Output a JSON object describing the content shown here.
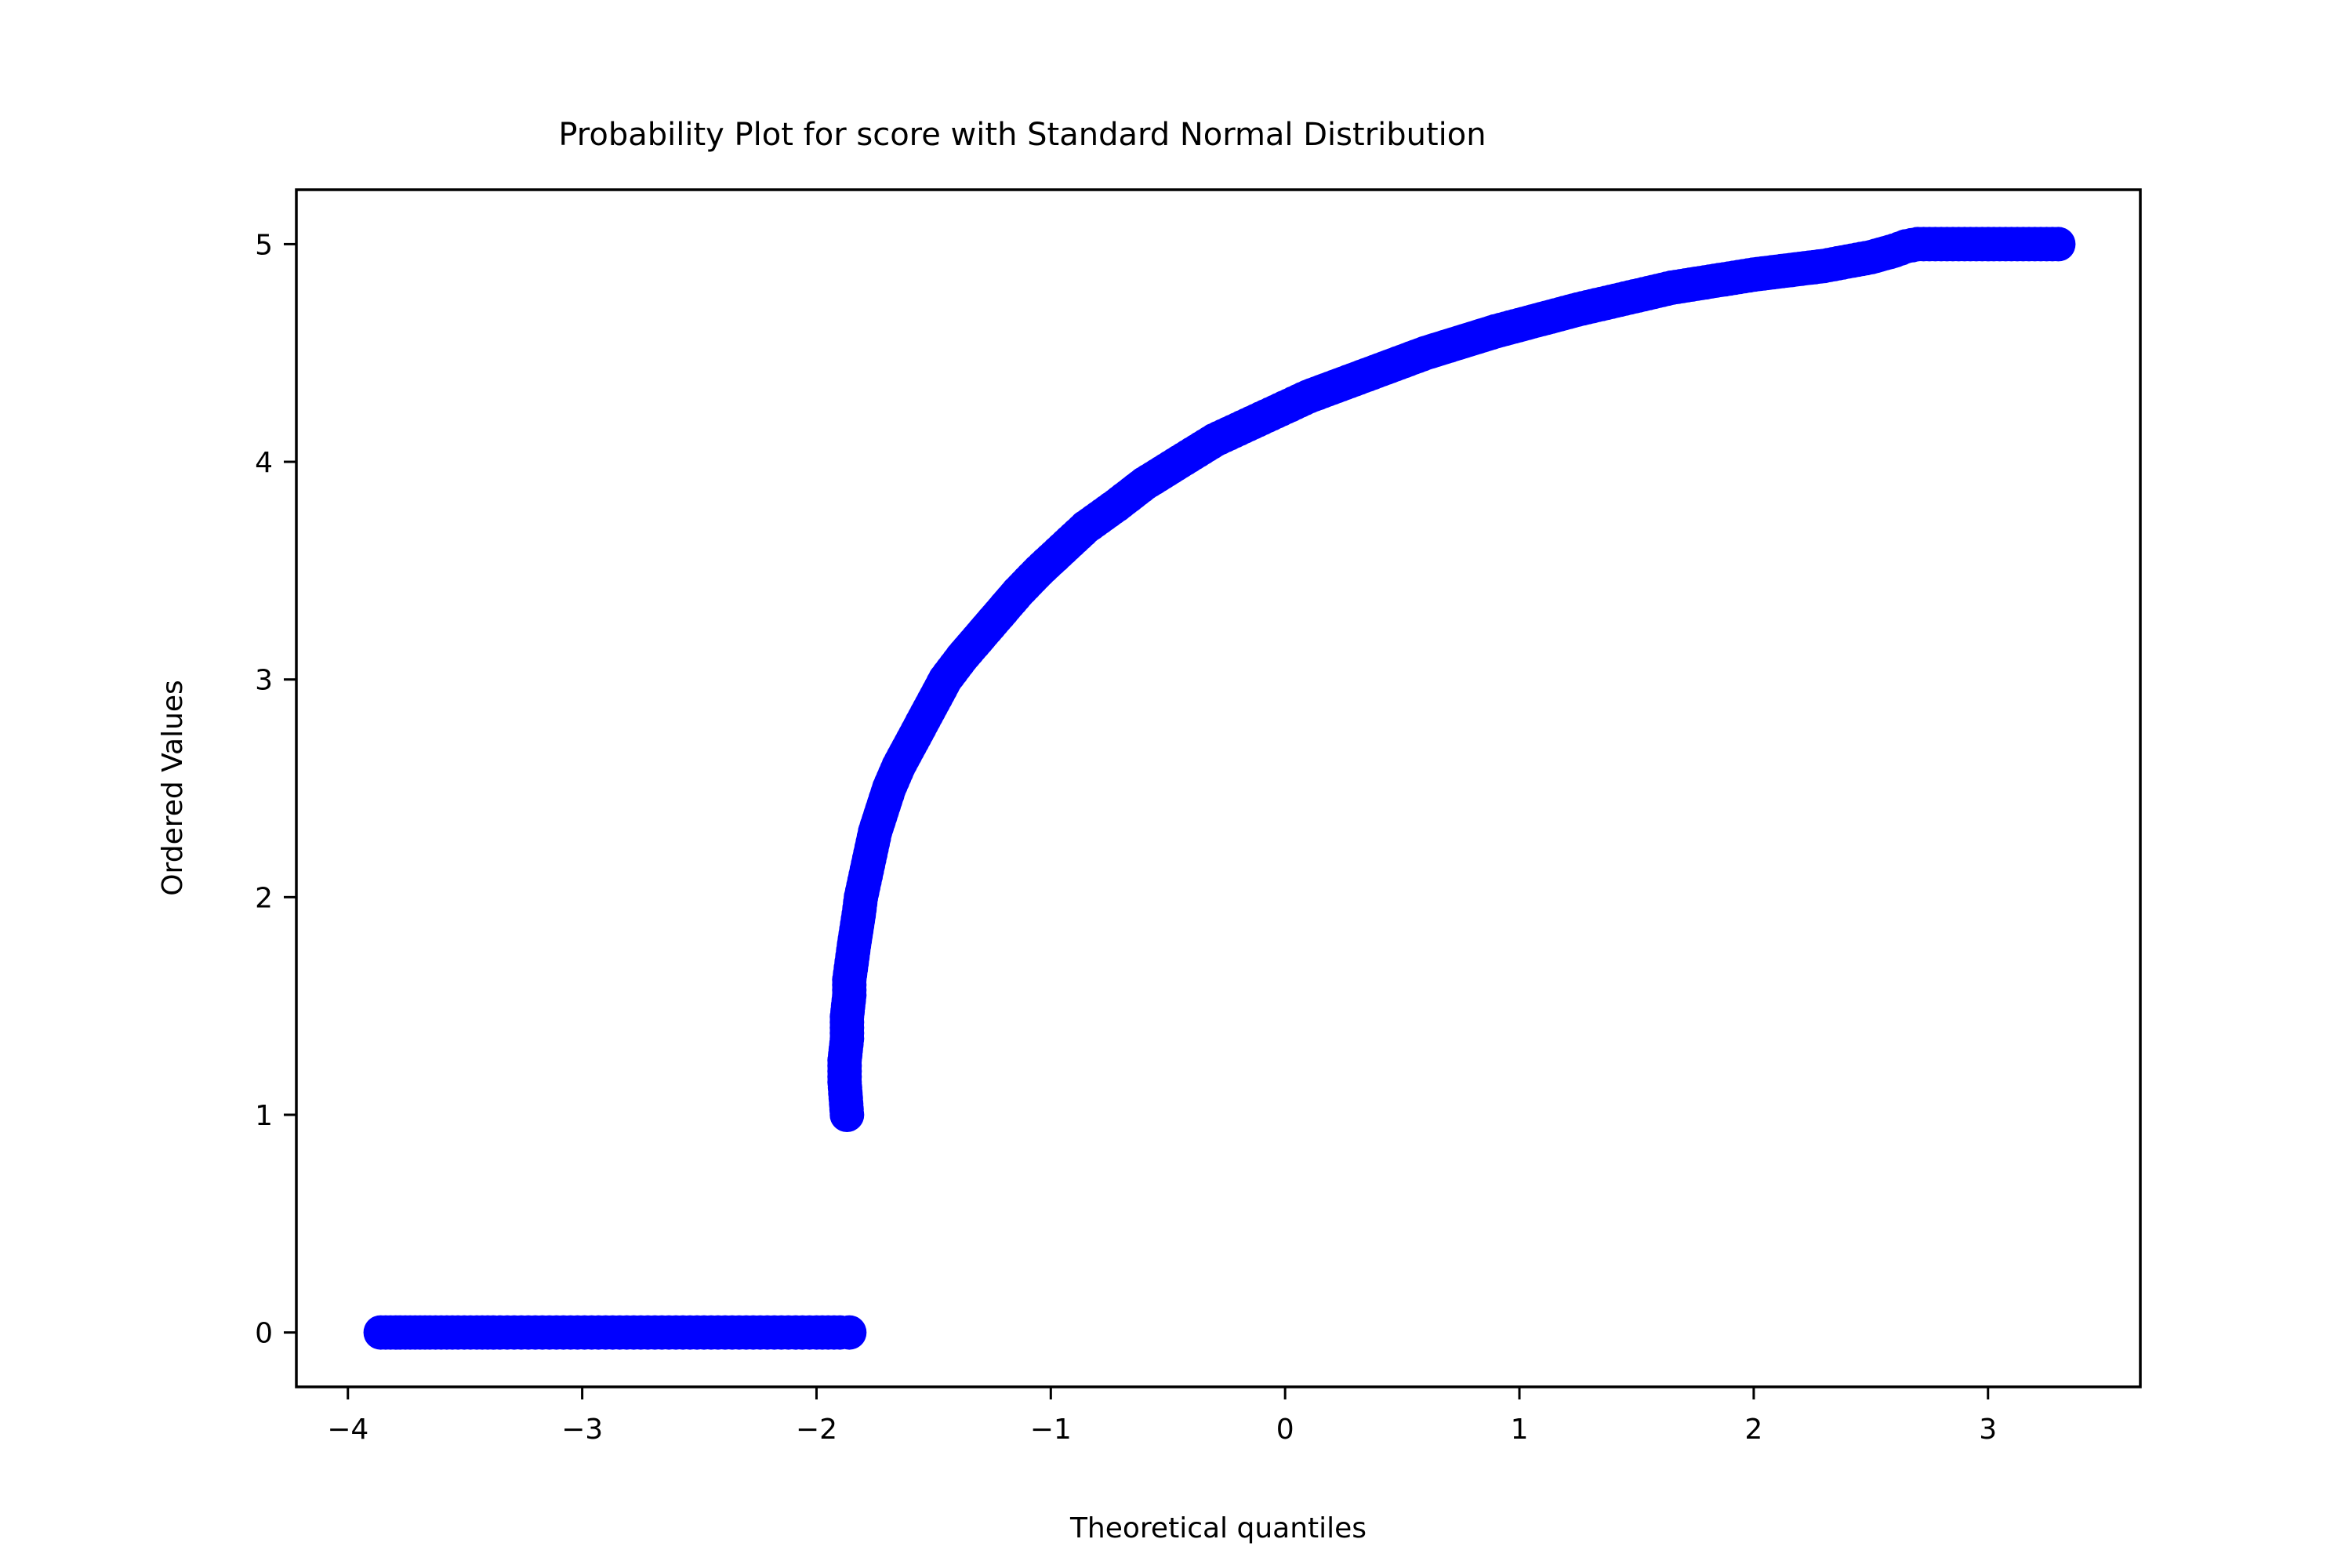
{
  "chart_data": {
    "type": "scatter",
    "title": "Probability Plot for score with Standard Normal Distribution",
    "xlabel": "Theoretical quantiles",
    "ylabel": "Ordered Values",
    "xlim": [
      -4.22,
      3.65
    ],
    "ylim": [
      -0.25,
      5.25
    ],
    "xticks": [
      -4,
      -3,
      -2,
      -1,
      0,
      1,
      2,
      3
    ],
    "xtick_labels": [
      "−4",
      "−3",
      "−2",
      "−1",
      "0",
      "1",
      "2",
      "3"
    ],
    "yticks": [
      0,
      1,
      2,
      3,
      4,
      5
    ],
    "ytick_labels": [
      "0",
      "1",
      "2",
      "3",
      "4",
      "5"
    ],
    "grid": false,
    "marker_color": "#0000ff",
    "series": [
      {
        "points": [
          [
            -3.86,
            0
          ],
          [
            -3.65,
            0
          ],
          [
            -3.53,
            0
          ],
          [
            -3.45,
            0
          ],
          [
            -3.38,
            0
          ],
          [
            -3.32,
            0
          ],
          [
            -3.26,
            0
          ],
          [
            -3.2,
            0
          ],
          [
            -3.14,
            0
          ],
          [
            -3.08,
            0
          ],
          [
            -3.02,
            0
          ],
          [
            -2.96,
            0
          ],
          [
            -2.9,
            0
          ],
          [
            -2.84,
            0
          ],
          [
            -2.78,
            0
          ],
          [
            -2.72,
            0
          ],
          [
            -2.66,
            0
          ],
          [
            -2.6,
            0
          ],
          [
            -2.54,
            0
          ],
          [
            -2.48,
            0
          ],
          [
            -2.42,
            0
          ],
          [
            -2.36,
            0
          ],
          [
            -2.3,
            0
          ],
          [
            -2.24,
            0
          ],
          [
            -2.18,
            0
          ],
          [
            -2.12,
            0
          ],
          [
            -2.06,
            0
          ],
          [
            -2.0,
            0
          ],
          [
            -1.95,
            0
          ],
          [
            -1.9,
            0
          ],
          [
            -1.86,
            0
          ],
          [
            -1.87,
            1.0
          ],
          [
            -1.88,
            1.15
          ],
          [
            -1.88,
            1.25
          ],
          [
            -1.87,
            1.35
          ],
          [
            -1.87,
            1.45
          ],
          [
            -1.86,
            1.55
          ],
          [
            -1.86,
            1.62
          ],
          [
            -1.85,
            1.7
          ],
          [
            -1.84,
            1.78
          ],
          [
            -1.83,
            1.85
          ],
          [
            -1.82,
            1.92
          ],
          [
            -1.81,
            2.0
          ],
          [
            -1.79,
            2.1
          ],
          [
            -1.77,
            2.2
          ],
          [
            -1.75,
            2.3
          ],
          [
            -1.72,
            2.4
          ],
          [
            -1.69,
            2.5
          ],
          [
            -1.65,
            2.6
          ],
          [
            -1.6,
            2.7
          ],
          [
            -1.55,
            2.8
          ],
          [
            -1.5,
            2.9
          ],
          [
            -1.45,
            3.0
          ],
          [
            -1.38,
            3.1
          ],
          [
            -1.3,
            3.2
          ],
          [
            -1.22,
            3.3
          ],
          [
            -1.14,
            3.4
          ],
          [
            -1.05,
            3.5
          ],
          [
            -0.95,
            3.6
          ],
          [
            -0.85,
            3.7
          ],
          [
            -0.72,
            3.8
          ],
          [
            -0.6,
            3.9
          ],
          [
            -0.45,
            4.0
          ],
          [
            -0.3,
            4.1
          ],
          [
            -0.1,
            4.2
          ],
          [
            0.1,
            4.3
          ],
          [
            0.35,
            4.4
          ],
          [
            0.6,
            4.5
          ],
          [
            0.9,
            4.6
          ],
          [
            1.25,
            4.7
          ],
          [
            1.65,
            4.8
          ],
          [
            2.0,
            4.86
          ],
          [
            2.3,
            4.9
          ],
          [
            2.5,
            4.94
          ],
          [
            2.6,
            4.97
          ],
          [
            2.65,
            4.99
          ],
          [
            2.7,
            5
          ],
          [
            2.8,
            5
          ],
          [
            2.9,
            5
          ],
          [
            3.0,
            5
          ],
          [
            3.1,
            5
          ],
          [
            3.2,
            5
          ],
          [
            3.3,
            5
          ]
        ]
      }
    ]
  }
}
